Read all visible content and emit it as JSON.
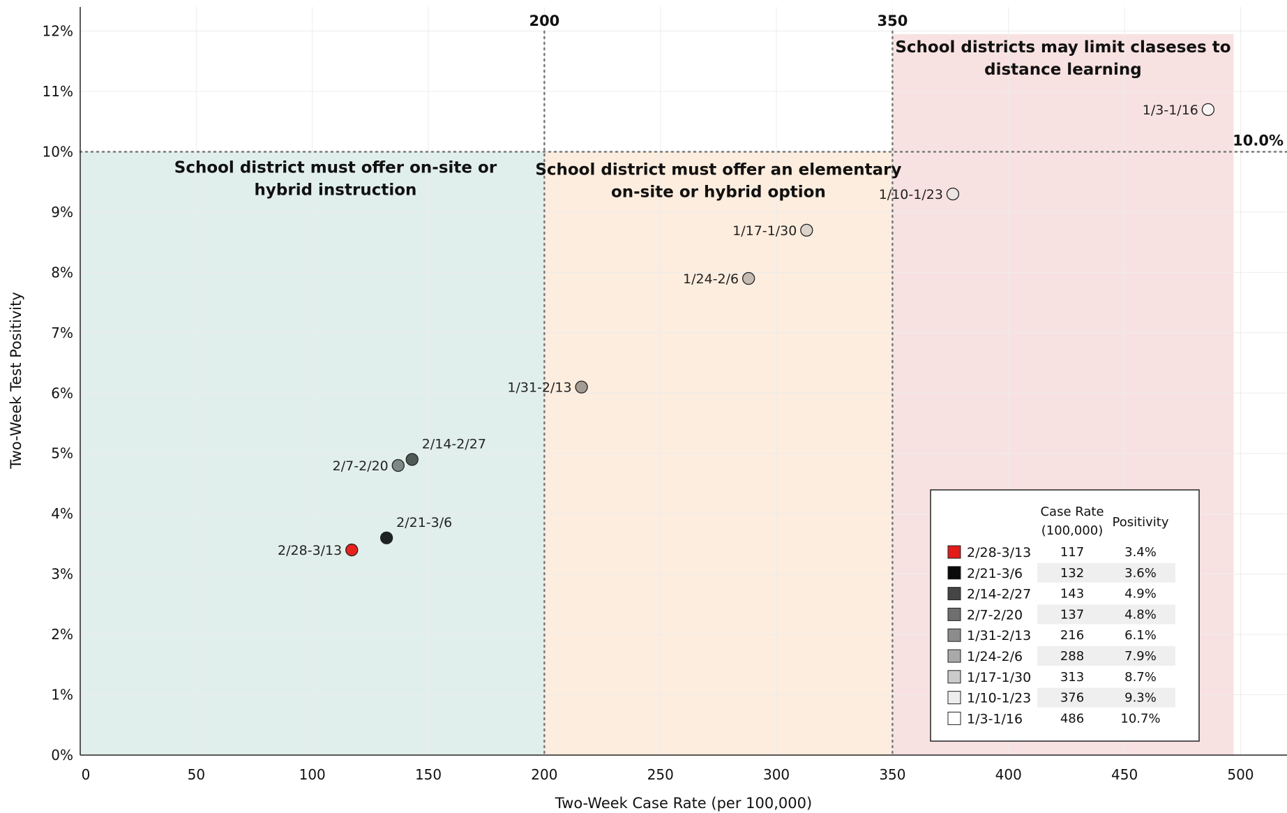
{
  "chart_data": {
    "type": "scatter",
    "xlabel": "Two-Week Case Rate (per 100,000)",
    "ylabel": "Two-Week Test Positivity",
    "xlim": [
      0,
      520
    ],
    "ylim": [
      0,
      12.4
    ],
    "x_ticks": [
      "0",
      "50",
      "100",
      "150",
      "200",
      "250",
      "300",
      "350",
      "400",
      "450",
      "500"
    ],
    "y_ticks": [
      "0%",
      "1%",
      "2%",
      "3%",
      "4%",
      "5%",
      "6%",
      "7%",
      "8%",
      "9%",
      "10%",
      "11%",
      "12%"
    ],
    "grid": true,
    "zones": [
      {
        "x0": 0,
        "x1": 200,
        "y0": 0,
        "y1": 10,
        "color": "#deeeea",
        "lines": [
          "School district must offer on-site or",
          "hybrid instruction"
        ]
      },
      {
        "x0": 200,
        "x1": 350,
        "y0": 0,
        "y1": 10,
        "color": "#fdecdb",
        "lines": [
          "School district must offer an elementary",
          "on-site or hybrid option"
        ]
      },
      {
        "x0": 350,
        "x1": 497,
        "y0": 0,
        "y1": 11.95,
        "color": "#f7dfde",
        "lines": [
          "School districts may limit claseses to",
          "distance learning"
        ]
      }
    ],
    "thresholds": {
      "x": [
        {
          "value": 200,
          "label": "200"
        },
        {
          "value": 350,
          "label": "350"
        }
      ],
      "y": [
        {
          "value": 10,
          "label": "10.0%"
        }
      ]
    },
    "points": [
      {
        "label": "2/28-3/13",
        "x": 117,
        "y": 3.4,
        "color": "#e8221d",
        "label_side": "left"
      },
      {
        "label": "2/21-3/6",
        "x": 132,
        "y": 3.6,
        "color": "#1d2320",
        "label_side": "above-right"
      },
      {
        "label": "2/14-2/27",
        "x": 143,
        "y": 4.9,
        "color": "#4f5a56",
        "label_side": "above-right"
      },
      {
        "label": "2/7-2/20",
        "x": 137,
        "y": 4.8,
        "color": "#7e8986",
        "label_side": "left"
      },
      {
        "label": "1/31-2/13",
        "x": 216,
        "y": 6.1,
        "color": "#a49b93",
        "label_side": "left"
      },
      {
        "label": "1/24-2/6",
        "x": 288,
        "y": 7.9,
        "color": "#c5bbb2",
        "label_side": "left"
      },
      {
        "label": "1/17-1/30",
        "x": 313,
        "y": 8.7,
        "color": "#dcd3ca",
        "label_side": "left"
      },
      {
        "label": "1/10-1/23",
        "x": 376,
        "y": 9.3,
        "color": "#ede5e4",
        "label_side": "left"
      },
      {
        "label": "1/3-1/16",
        "x": 486,
        "y": 10.7,
        "color": "#faf5f5",
        "label_side": "left"
      }
    ],
    "legend": {
      "placement": "bottom-right",
      "header_rate": [
        "Case Rate",
        "(100,000)"
      ],
      "header_pos": "Positivity",
      "rows": [
        {
          "label": "2/28-3/13",
          "rate": "117",
          "pos": "3.4%",
          "color": "#e21b1b"
        },
        {
          "label": "2/21-3/6",
          "rate": "132",
          "pos": "3.6%",
          "color": "#0a0a0a"
        },
        {
          "label": "2/14-2/27",
          "rate": "143",
          "pos": "4.9%",
          "color": "#454545"
        },
        {
          "label": "2/7-2/20",
          "rate": "137",
          "pos": "4.8%",
          "color": "#6f6f6f"
        },
        {
          "label": "1/31-2/13",
          "rate": "216",
          "pos": "6.1%",
          "color": "#8c8c8c"
        },
        {
          "label": "1/24-2/6",
          "rate": "288",
          "pos": "7.9%",
          "color": "#a9a9a9"
        },
        {
          "label": "1/17-1/30",
          "rate": "313",
          "pos": "8.7%",
          "color": "#cbcbcb"
        },
        {
          "label": "1/10-1/23",
          "rate": "376",
          "pos": "9.3%",
          "color": "#ededed"
        },
        {
          "label": "1/3-1/16",
          "rate": "486",
          "pos": "10.7%",
          "color": "#ffffff"
        }
      ]
    }
  }
}
